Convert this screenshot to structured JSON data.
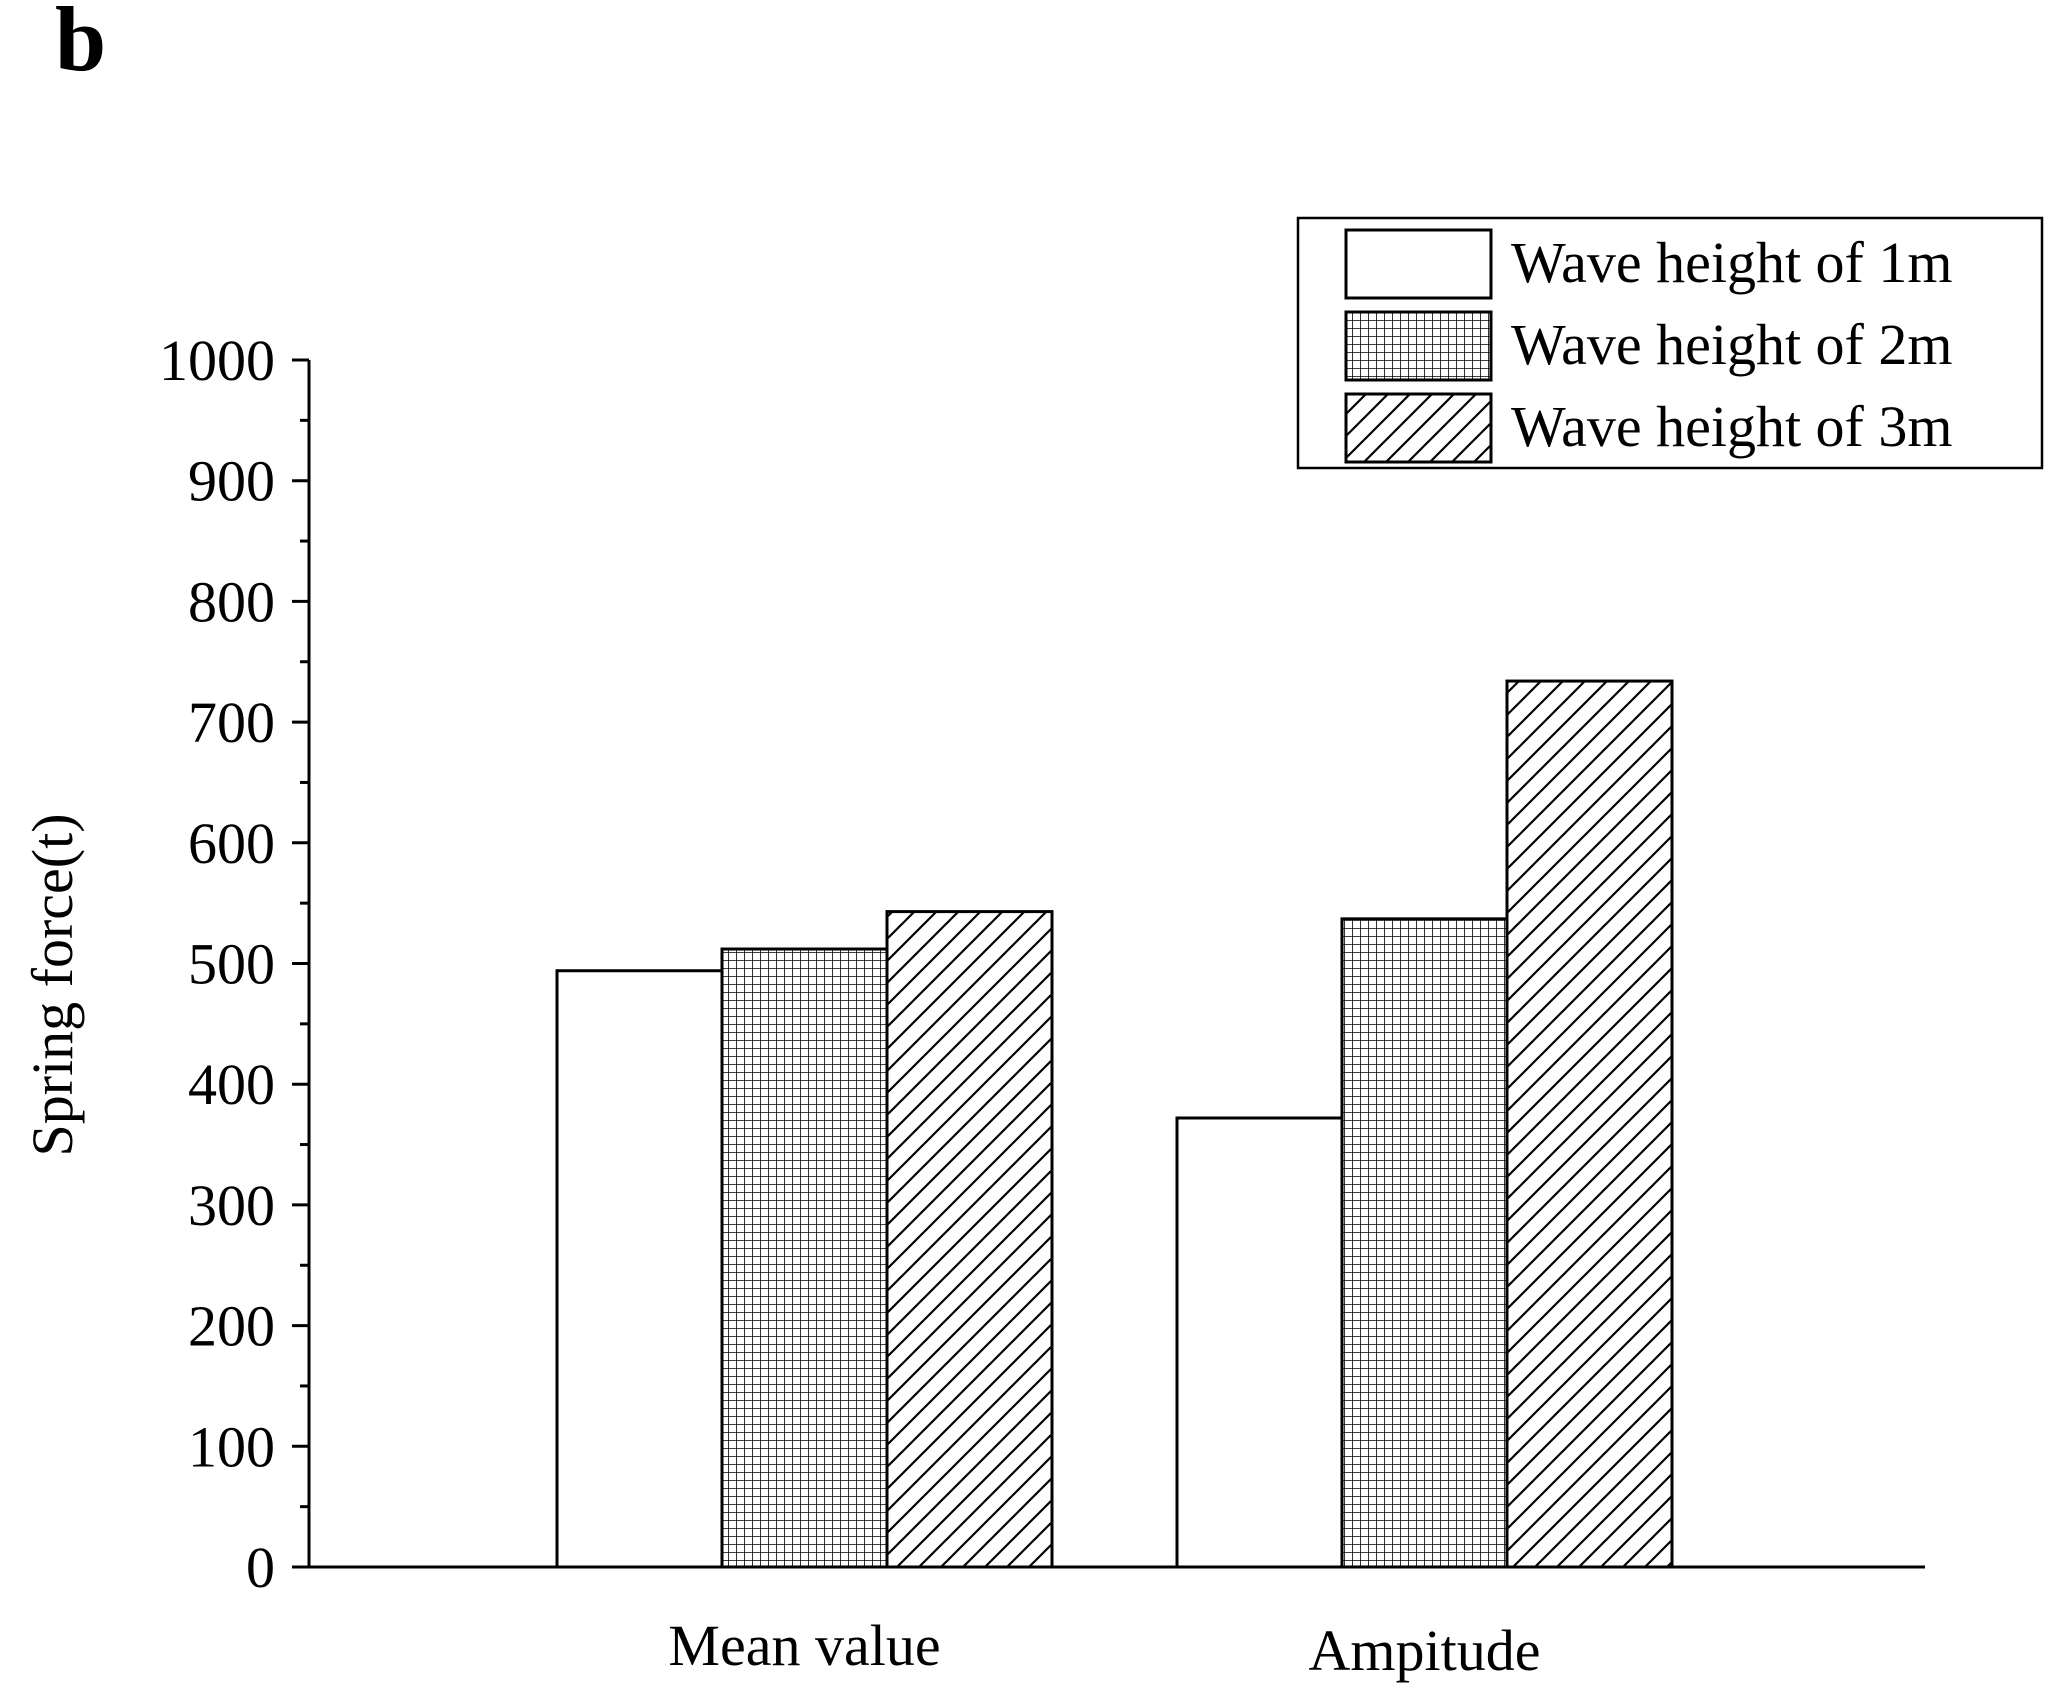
{
  "panel_label": "b",
  "chart_data": {
    "type": "bar",
    "title": "",
    "xlabel": "",
    "ylabel": "Spring force(t)",
    "categories": [
      "Mean value",
      "Ampitude"
    ],
    "ylim": [
      0,
      1000
    ],
    "yticks": [
      0,
      100,
      200,
      300,
      400,
      500,
      600,
      700,
      800,
      900,
      1000
    ],
    "ytick_labels": [
      "0",
      "100",
      "200",
      "300",
      "400",
      "500",
      "600",
      "700",
      "800",
      "900",
      "1000"
    ],
    "minor_tick_step": 50,
    "grid": false,
    "legend_position": "top-right",
    "series": [
      {
        "name": "Wave height of 1m",
        "pattern": "none",
        "values": [
          494,
          372
        ]
      },
      {
        "name": "Wave height of 2m",
        "pattern": "grid",
        "values": [
          512,
          537
        ]
      },
      {
        "name": "Wave height of 3m",
        "pattern": "diagonal",
        "values": [
          543,
          734
        ]
      }
    ]
  }
}
